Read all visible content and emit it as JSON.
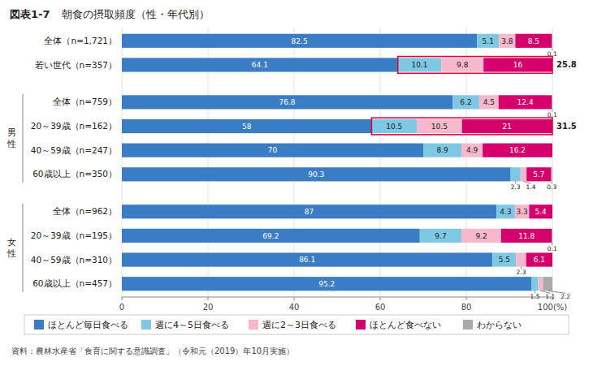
{
  "chart_data": {
    "type": "bar",
    "orientation": "horizontal",
    "stacked": true,
    "figure_label": "図表1-7",
    "title": "朝食の摂取頻度（性・年代別）",
    "source": "資料：農林水産省「食育に関する意識調査」（令和元（2019）年10月実施）",
    "categories": [
      "全体（n=1,721）",
      "若い世代（n=357）",
      "全体（n=759）",
      "20～39歳（n=162）",
      "40～59歳（n=247）",
      "60歳以上（n=350）",
      "全体（n=962）",
      "20～39歳（n=195）",
      "40～59歳（n=310）",
      "60歳以上（n=457）"
    ],
    "groups": [
      {
        "label": "男性",
        "members": [
          "全体（n=759）",
          "20～39歳（n=162）",
          "40～59歳（n=247）",
          "60歳以上（n=350）"
        ]
      },
      {
        "label": "女性",
        "members": [
          "全体（n=962）",
          "20～39歳（n=195）",
          "40～59歳（n=310）",
          "60歳以上（n=457）"
        ]
      }
    ],
    "series": [
      {
        "name": "ほとんど毎日食べる",
        "color": "#3B7DC4",
        "values": [
          82.5,
          64.1,
          76.8,
          58.0,
          70.0,
          90.3,
          87.0,
          69.2,
          86.1,
          95.2
        ]
      },
      {
        "name": "週に4～5日食べる",
        "color": "#7EC8E3",
        "values": [
          5.1,
          10.1,
          6.2,
          10.5,
          8.9,
          2.3,
          4.3,
          9.7,
          5.5,
          1.5
        ]
      },
      {
        "name": "週に2～3日食べる",
        "color": "#F5B8CC",
        "values": [
          3.8,
          9.8,
          4.5,
          10.5,
          4.9,
          1.4,
          3.3,
          9.2,
          2.3,
          1.1
        ]
      },
      {
        "name": "ほとんど食べない",
        "color": "#D4006B",
        "values": [
          8.5,
          16.0,
          12.4,
          21.0,
          16.2,
          5.7,
          5.4,
          11.8,
          6.1,
          0.0
        ]
      },
      {
        "name": "わからない",
        "color": "#AAAAAA",
        "values": [
          0.1,
          0.0,
          0.1,
          0.0,
          0.0,
          0.3,
          0.0,
          0.1,
          0.0,
          2.2
        ]
      }
    ],
    "highlights": [
      {
        "category": "若い世代（n=357）",
        "value": 25.8,
        "color": "#E8003A"
      },
      {
        "category": "20～39歳（n=162）",
        "value": 31.5,
        "color": "#E8003A"
      }
    ],
    "xlim": [
      0,
      100
    ],
    "xticks": [
      0,
      20,
      40,
      60,
      80,
      {
        "value": 100,
        "label": "100(%)"
      }
    ],
    "grid": true,
    "data_labels": true
  }
}
